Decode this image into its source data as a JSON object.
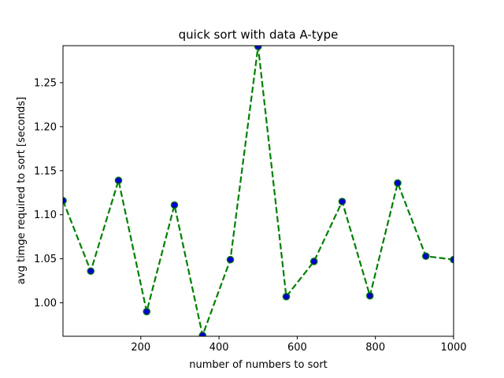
{
  "chart_data": {
    "type": "line",
    "title": "quick sort with data A-type",
    "xlabel": "number of numbers to sort",
    "ylabel": "avg timge required to sort  [seconds]",
    "xlim": [
      1,
      1000
    ],
    "ylim": [
      0.962,
      1.292
    ],
    "grid": false,
    "x_ticks": [
      200,
      400,
      600,
      800,
      1000
    ],
    "y_ticks": [
      1.0,
      1.05,
      1.1,
      1.15,
      1.2,
      1.25
    ],
    "x_tick_labels": [
      "200",
      "400",
      "600",
      "800",
      "1000"
    ],
    "y_tick_labels": [
      "1.00",
      "1.05",
      "1.10",
      "1.15",
      "1.20",
      "1.25"
    ],
    "series": [
      {
        "style": "dashed",
        "line_color": "#008000",
        "marker": "circle",
        "marker_face": "#0000cc",
        "marker_edge": "#008000",
        "x": [
          1,
          72,
          143,
          215,
          286,
          358,
          429,
          500,
          572,
          643,
          715,
          786,
          857,
          929,
          1000
        ],
        "y": [
          1.116,
          1.036,
          1.139,
          0.99,
          1.111,
          0.963,
          1.049,
          1.291,
          1.007,
          1.047,
          1.115,
          1.008,
          1.136,
          1.053,
          1.049
        ]
      }
    ]
  }
}
